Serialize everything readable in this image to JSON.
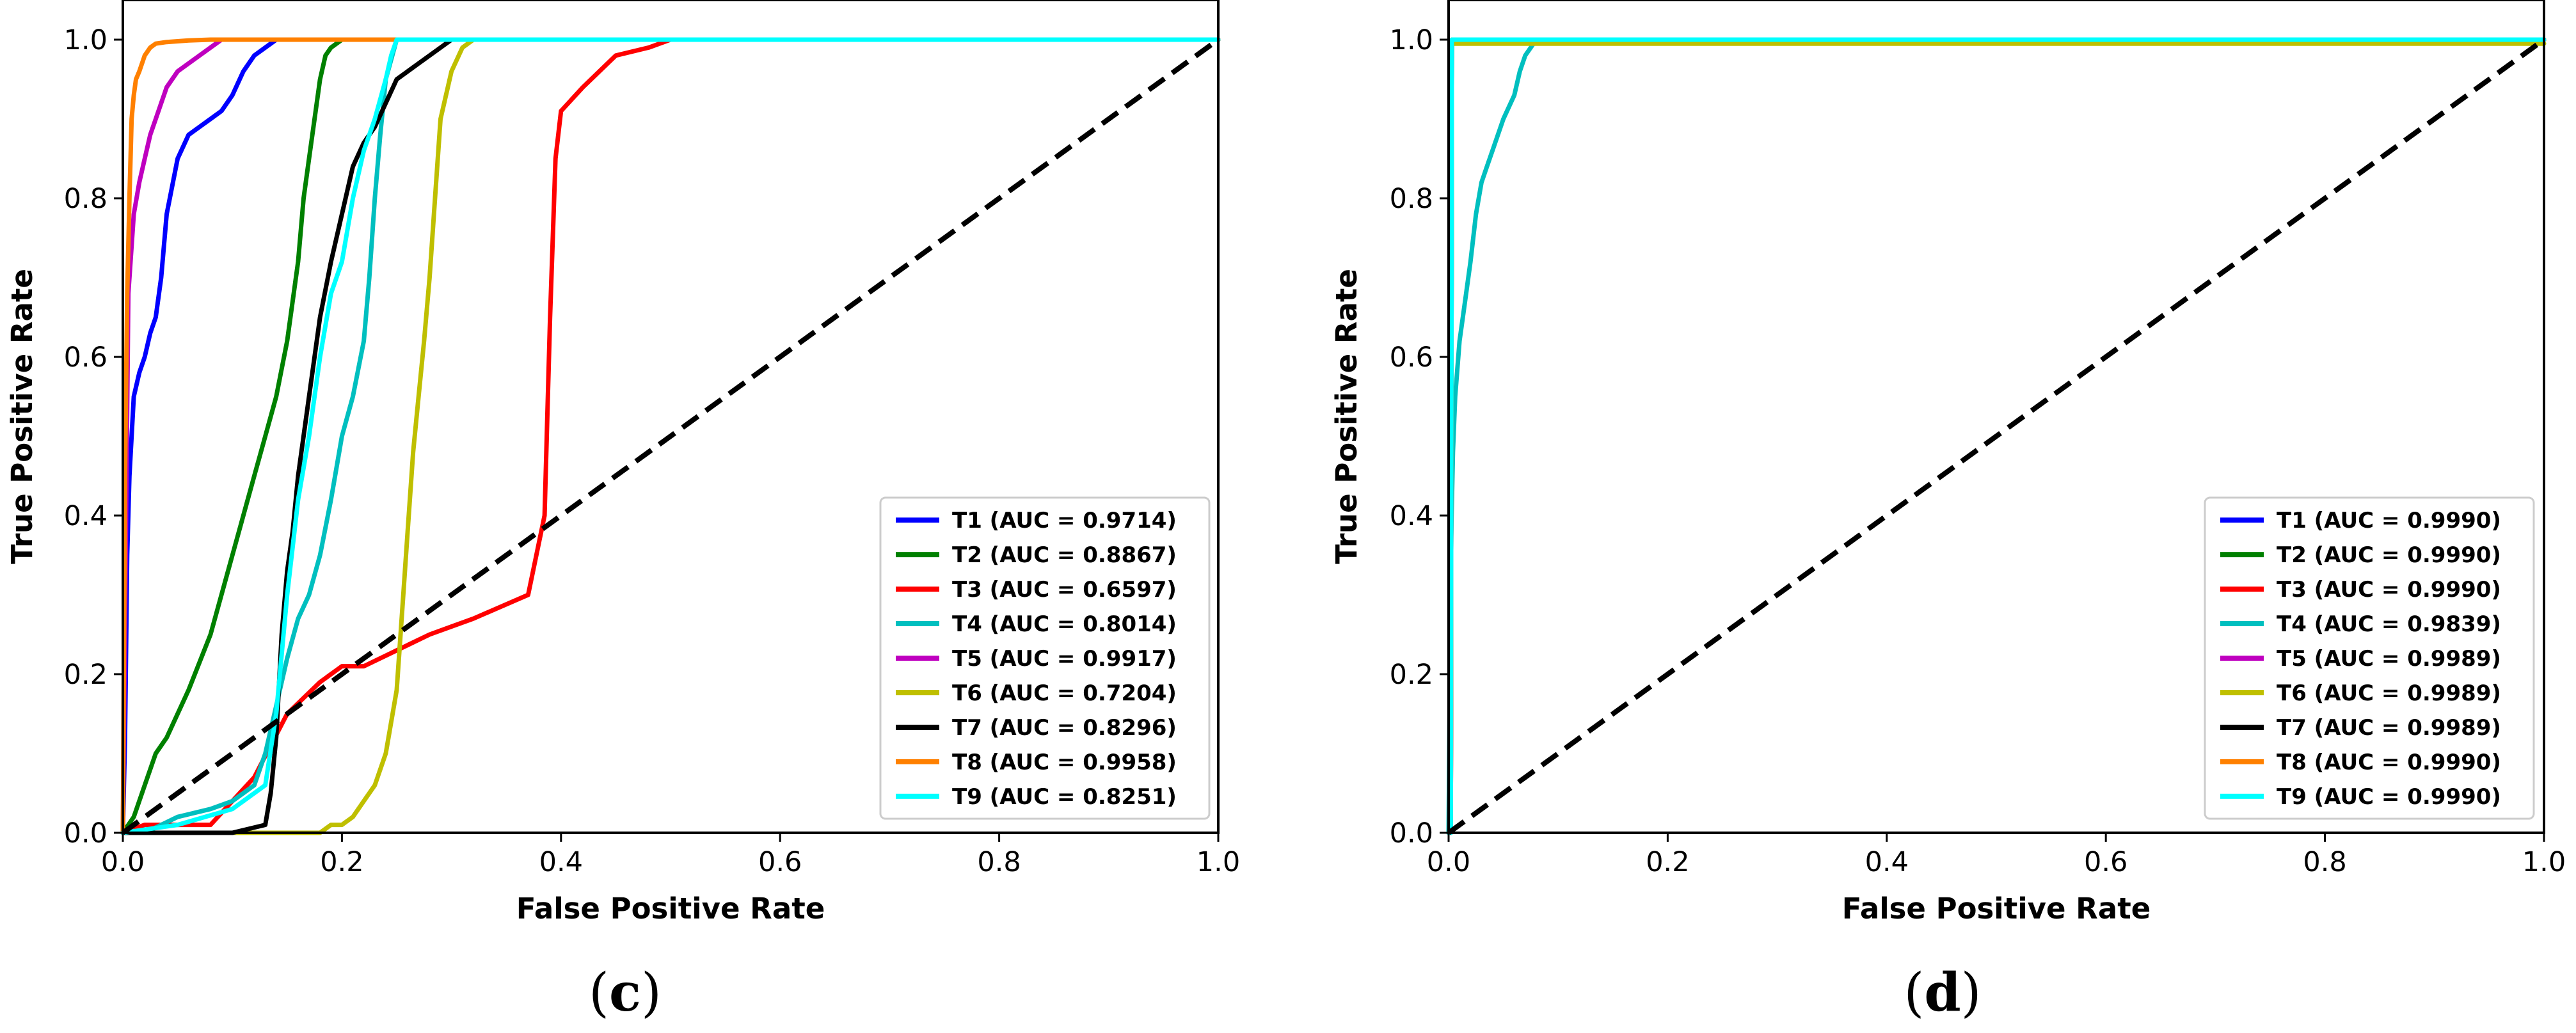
{
  "chart_data": [
    {
      "id": "c",
      "caption": {
        "open": "(",
        "letter": "c",
        "close": ")"
      },
      "type": "line",
      "title": "",
      "xlabel": "False Positive Rate",
      "ylabel": "True Positive Rate",
      "xlim": [
        0.0,
        1.0
      ],
      "ylim": [
        0.0,
        1.05
      ],
      "xticks": [
        0.0,
        0.2,
        0.4,
        0.6,
        0.8,
        1.0
      ],
      "xtick_labels": [
        "0.0",
        "0.2",
        "0.4",
        "0.6",
        "0.8",
        "1.0"
      ],
      "yticks": [
        0.0,
        0.2,
        0.4,
        0.6,
        0.8,
        1.0
      ],
      "ytick_labels": [
        "0.0",
        "0.2",
        "0.4",
        "0.6",
        "0.8",
        "1.0"
      ],
      "grid": false,
      "legend_position": "lower-right",
      "diagonal": {
        "x": [
          0,
          1
        ],
        "y": [
          0,
          1
        ],
        "color": "#000000",
        "style": "dashed"
      },
      "series": [
        {
          "name": "T1",
          "label": "T1 (AUC = 0.9714)",
          "color": "#0000ff",
          "x": [
            0,
            0.002,
            0.004,
            0.006,
            0.01,
            0.015,
            0.02,
            0.025,
            0.03,
            0.035,
            0.04,
            0.05,
            0.06,
            0.07,
            0.08,
            0.09,
            0.1,
            0.11,
            0.12,
            0.13,
            0.14,
            1.0
          ],
          "y": [
            0,
            0.12,
            0.35,
            0.45,
            0.55,
            0.58,
            0.6,
            0.63,
            0.65,
            0.7,
            0.78,
            0.85,
            0.88,
            0.89,
            0.9,
            0.91,
            0.93,
            0.96,
            0.98,
            0.99,
            1.0,
            1.0
          ]
        },
        {
          "name": "T2",
          "label": "T2 (AUC = 0.8867)",
          "color": "#008000",
          "x": [
            0,
            0.01,
            0.02,
            0.03,
            0.04,
            0.06,
            0.08,
            0.1,
            0.11,
            0.12,
            0.13,
            0.14,
            0.15,
            0.16,
            0.165,
            0.17,
            0.175,
            0.18,
            0.185,
            0.19,
            0.2,
            1.0
          ],
          "y": [
            0,
            0.02,
            0.06,
            0.1,
            0.12,
            0.18,
            0.25,
            0.35,
            0.4,
            0.45,
            0.5,
            0.55,
            0.62,
            0.72,
            0.8,
            0.85,
            0.9,
            0.95,
            0.98,
            0.99,
            1.0,
            1.0
          ]
        },
        {
          "name": "T3",
          "label": "T3 (AUC = 0.6597)",
          "color": "#ff0000",
          "x": [
            0,
            0.02,
            0.05,
            0.08,
            0.12,
            0.15,
            0.18,
            0.2,
            0.22,
            0.25,
            0.28,
            0.3,
            0.32,
            0.37,
            0.385,
            0.39,
            0.395,
            0.4,
            0.42,
            0.45,
            0.48,
            0.5,
            1.0
          ],
          "y": [
            0,
            0.01,
            0.01,
            0.01,
            0.07,
            0.15,
            0.19,
            0.21,
            0.21,
            0.23,
            0.25,
            0.26,
            0.27,
            0.3,
            0.4,
            0.65,
            0.85,
            0.91,
            0.94,
            0.98,
            0.99,
            1.0,
            1.0
          ]
        },
        {
          "name": "T4",
          "label": "T4 (AUC = 0.8014)",
          "color": "#00bfbf",
          "x": [
            0,
            0.02,
            0.05,
            0.08,
            0.1,
            0.12,
            0.13,
            0.14,
            0.15,
            0.16,
            0.17,
            0.18,
            0.19,
            0.2,
            0.21,
            0.22,
            0.225,
            0.23,
            0.235,
            0.24,
            0.25,
            1.0
          ],
          "y": [
            0,
            0.0,
            0.02,
            0.03,
            0.04,
            0.06,
            0.1,
            0.16,
            0.22,
            0.27,
            0.3,
            0.35,
            0.42,
            0.5,
            0.55,
            0.62,
            0.7,
            0.8,
            0.88,
            0.95,
            1.0,
            1.0
          ]
        },
        {
          "name": "T5",
          "label": "T5 (AUC = 0.9917)",
          "color": "#bf00bf",
          "x": [
            0,
            0.005,
            0.01,
            0.015,
            0.02,
            0.025,
            0.03,
            0.035,
            0.04,
            0.05,
            0.06,
            0.07,
            0.08,
            0.09,
            1.0
          ],
          "y": [
            0,
            0.68,
            0.78,
            0.82,
            0.85,
            0.88,
            0.9,
            0.92,
            0.94,
            0.96,
            0.97,
            0.98,
            0.99,
            1.0,
            1.0
          ]
        },
        {
          "name": "T6",
          "label": "T6 (AUC = 0.7204)",
          "color": "#bfbf00",
          "x": [
            0,
            0.18,
            0.19,
            0.2,
            0.21,
            0.22,
            0.23,
            0.24,
            0.25,
            0.255,
            0.26,
            0.265,
            0.27,
            0.275,
            0.28,
            0.285,
            0.29,
            0.3,
            0.31,
            0.32,
            1.0
          ],
          "y": [
            0,
            0.0,
            0.01,
            0.01,
            0.02,
            0.04,
            0.06,
            0.1,
            0.18,
            0.28,
            0.38,
            0.48,
            0.55,
            0.62,
            0.7,
            0.8,
            0.9,
            0.96,
            0.99,
            1.0,
            1.0
          ]
        },
        {
          "name": "T7",
          "label": "T7 (AUC = 0.8296)",
          "color": "#000000",
          "x": [
            0,
            0.05,
            0.1,
            0.13,
            0.135,
            0.14,
            0.145,
            0.15,
            0.155,
            0.16,
            0.17,
            0.18,
            0.19,
            0.2,
            0.21,
            0.22,
            0.23,
            0.24,
            0.25,
            0.27,
            0.29,
            0.3,
            1.0
          ],
          "y": [
            0,
            0.0,
            0.0,
            0.01,
            0.05,
            0.12,
            0.25,
            0.33,
            0.38,
            0.45,
            0.55,
            0.65,
            0.72,
            0.78,
            0.84,
            0.87,
            0.89,
            0.92,
            0.95,
            0.97,
            0.99,
            1.0,
            1.0
          ]
        },
        {
          "name": "T8",
          "label": "T8 (AUC = 0.9958)",
          "color": "#ff8000",
          "x": [
            0,
            0.002,
            0.004,
            0.006,
            0.008,
            0.01,
            0.012,
            0.015,
            0.02,
            0.025,
            0.03,
            0.04,
            0.05,
            0.06,
            0.08,
            0.1,
            0.25,
            1.0
          ],
          "y": [
            0,
            0.45,
            0.68,
            0.8,
            0.9,
            0.93,
            0.95,
            0.96,
            0.98,
            0.99,
            0.995,
            0.997,
            0.998,
            0.999,
            1.0,
            1.0,
            1.0,
            1.0
          ]
        },
        {
          "name": "T9",
          "label": "T9 (AUC = 0.8251)",
          "color": "#00ffff",
          "x": [
            0,
            0.05,
            0.1,
            0.13,
            0.14,
            0.15,
            0.16,
            0.17,
            0.18,
            0.19,
            0.2,
            0.21,
            0.22,
            0.23,
            0.24,
            0.245,
            0.25,
            1.0
          ],
          "y": [
            0,
            0.01,
            0.03,
            0.06,
            0.15,
            0.3,
            0.42,
            0.5,
            0.6,
            0.68,
            0.72,
            0.8,
            0.86,
            0.9,
            0.95,
            0.98,
            1.0,
            1.0
          ]
        }
      ]
    },
    {
      "id": "d",
      "caption": {
        "open": "(",
        "letter": "d",
        "close": ")"
      },
      "type": "line",
      "title": "",
      "xlabel": "False Positive Rate",
      "ylabel": "True Positive Rate",
      "xlim": [
        0.0,
        1.0
      ],
      "ylim": [
        0.0,
        1.05
      ],
      "xticks": [
        0.0,
        0.2,
        0.4,
        0.6,
        0.8,
        1.0
      ],
      "xtick_labels": [
        "0.0",
        "0.2",
        "0.4",
        "0.6",
        "0.8",
        "1.0"
      ],
      "yticks": [
        0.0,
        0.2,
        0.4,
        0.6,
        0.8,
        1.0
      ],
      "ytick_labels": [
        "0.0",
        "0.2",
        "0.4",
        "0.6",
        "0.8",
        "1.0"
      ],
      "grid": false,
      "legend_position": "lower-right",
      "diagonal": {
        "x": [
          0,
          1
        ],
        "y": [
          0,
          1
        ],
        "color": "#000000",
        "style": "dashed"
      },
      "series": [
        {
          "name": "T1",
          "label": "T1 (AUC = 0.9990)",
          "color": "#0000ff",
          "x": [
            0,
            0.002,
            0.003,
            1.0
          ],
          "y": [
            0,
            0.0,
            1.0,
            1.0
          ]
        },
        {
          "name": "T2",
          "label": "T2 (AUC = 0.9990)",
          "color": "#008000",
          "x": [
            0,
            0.002,
            0.003,
            1.0
          ],
          "y": [
            0,
            0.0,
            1.0,
            1.0
          ]
        },
        {
          "name": "T3",
          "label": "T3 (AUC = 0.9990)",
          "color": "#ff0000",
          "x": [
            0,
            0.002,
            0.003,
            1.0
          ],
          "y": [
            0,
            0.0,
            1.0,
            1.0
          ]
        },
        {
          "name": "T4",
          "label": "T4 (AUC = 0.9839)",
          "color": "#00bfbf",
          "x": [
            0,
            0.002,
            0.004,
            0.006,
            0.01,
            0.015,
            0.02,
            0.025,
            0.03,
            0.035,
            0.04,
            0.05,
            0.06,
            0.065,
            0.07,
            0.075,
            0.08,
            1.0
          ],
          "y": [
            0,
            0.35,
            0.48,
            0.55,
            0.62,
            0.67,
            0.72,
            0.78,
            0.82,
            0.84,
            0.86,
            0.9,
            0.93,
            0.96,
            0.98,
            0.99,
            1.0,
            1.0
          ]
        },
        {
          "name": "T5",
          "label": "T5 (AUC = 0.9989)",
          "color": "#bf00bf",
          "x": [
            0,
            0.002,
            0.003,
            1.0
          ],
          "y": [
            0,
            0.0,
            1.0,
            1.0
          ]
        },
        {
          "name": "T6",
          "label": "T6 (AUC = 0.9989)",
          "color": "#bfbf00",
          "x": [
            0,
            0.002,
            0.003,
            1.0
          ],
          "y": [
            0,
            0.0,
            0.995,
            0.995
          ]
        },
        {
          "name": "T7",
          "label": "T7 (AUC = 0.9989)",
          "color": "#000000",
          "x": [
            0,
            0.002,
            0.003,
            1.0
          ],
          "y": [
            0,
            0.0,
            1.0,
            1.0
          ]
        },
        {
          "name": "T8",
          "label": "T8 (AUC = 0.9990)",
          "color": "#ff8000",
          "x": [
            0,
            0.002,
            0.003,
            1.0
          ],
          "y": [
            0,
            0.0,
            1.0,
            1.0
          ]
        },
        {
          "name": "T9",
          "label": "T9 (AUC = 0.9990)",
          "color": "#00ffff",
          "x": [
            0,
            0.002,
            0.003,
            1.0
          ],
          "y": [
            0,
            0.0,
            1.0,
            1.0
          ]
        }
      ]
    }
  ]
}
